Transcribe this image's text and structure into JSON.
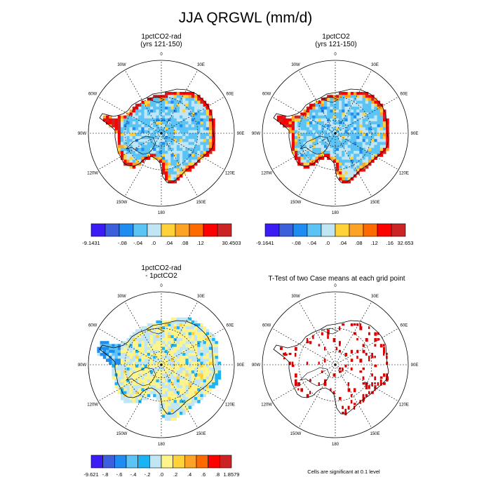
{
  "title": "JJA QRGWL (mm/d)",
  "footnote": "Cells are significant at 0.1 level",
  "longitude_labels": [
    "0",
    "30E",
    "60E",
    "90E",
    "120E",
    "150E",
    "180",
    "150W",
    "120W",
    "90W",
    "60W",
    "30W"
  ],
  "colors": {
    "land_outline": "#000000",
    "grid": "#000000",
    "significant_cells": "#dd0000"
  },
  "chart_data": [
    {
      "type": "heatmap",
      "projection": "south-polar-stereographic",
      "title": "1pctCO2-rad",
      "subtitle": "(yrs 121-150)",
      "colorbar": {
        "colors": [
          "#3b1cf5",
          "#3c5fdc",
          "#1e8cf0",
          "#5cc3f5",
          "#c0e6f5",
          "#ffd23a",
          "#fca326",
          "#ff6a00",
          "#ff0000",
          "#cc2424"
        ],
        "labels": [
          "-9.1431",
          "",
          "-.08",
          "-.04",
          ".0",
          ".04",
          ".08",
          ".12",
          "",
          "30.4503"
        ]
      },
      "field": {
        "interior": "light-blue-and-cyan mix (~-0.04 to .0)",
        "coast": "red/orange (>0.08)",
        "hotspot": "Antarctic Peninsula"
      }
    },
    {
      "type": "heatmap",
      "projection": "south-polar-stereographic",
      "title": "1pctCO2",
      "subtitle": "(yrs 121-150)",
      "colorbar": {
        "colors": [
          "#3b1cf5",
          "#3c5fdc",
          "#1e8cf0",
          "#5cc3f5",
          "#c0e6f5",
          "#ffd23a",
          "#fca326",
          "#ff6a00",
          "#ff0000",
          "#cc2424"
        ],
        "labels": [
          "-9.1641",
          "",
          "-.08",
          "-.04",
          ".0",
          ".04",
          ".08",
          ".12",
          ".16",
          "32.653"
        ]
      },
      "field": {
        "interior": "light-blue-and-cyan mix (~-0.04 to .0)",
        "coast": "red/orange (>0.08)",
        "hotspot": "Antarctic Peninsula"
      }
    },
    {
      "type": "heatmap",
      "projection": "south-polar-stereographic",
      "title": "1pctCO2-rad",
      "subtitle": "- 1pctCO2",
      "colorbar": {
        "colors": [
          "#3b1cf5",
          "#3c5fdc",
          "#1e8cf0",
          "#5cc3f5",
          "#1ab4f5",
          "#c0e6f5",
          "#fff48a",
          "#ffd23a",
          "#fca326",
          "#ff6a00",
          "#ff0000",
          "#cc2424"
        ],
        "labels": [
          "-9.621",
          "-.8",
          "-.6",
          "-.4",
          "-.2",
          ".0",
          ".2",
          ".4",
          ".6",
          ".8",
          "1.8579"
        ]
      },
      "field": {
        "interior": "mixed pale yellow and light blue (~-0.2 to 0.2)",
        "hotspot": "Antarctic Peninsula (blue)"
      }
    },
    {
      "type": "heatmap",
      "projection": "south-polar-stereographic",
      "title": "T-Test of two Case means at each grid point",
      "subtitle": "",
      "field": {
        "interior": "white",
        "significant": "scattered red cells"
      }
    }
  ]
}
